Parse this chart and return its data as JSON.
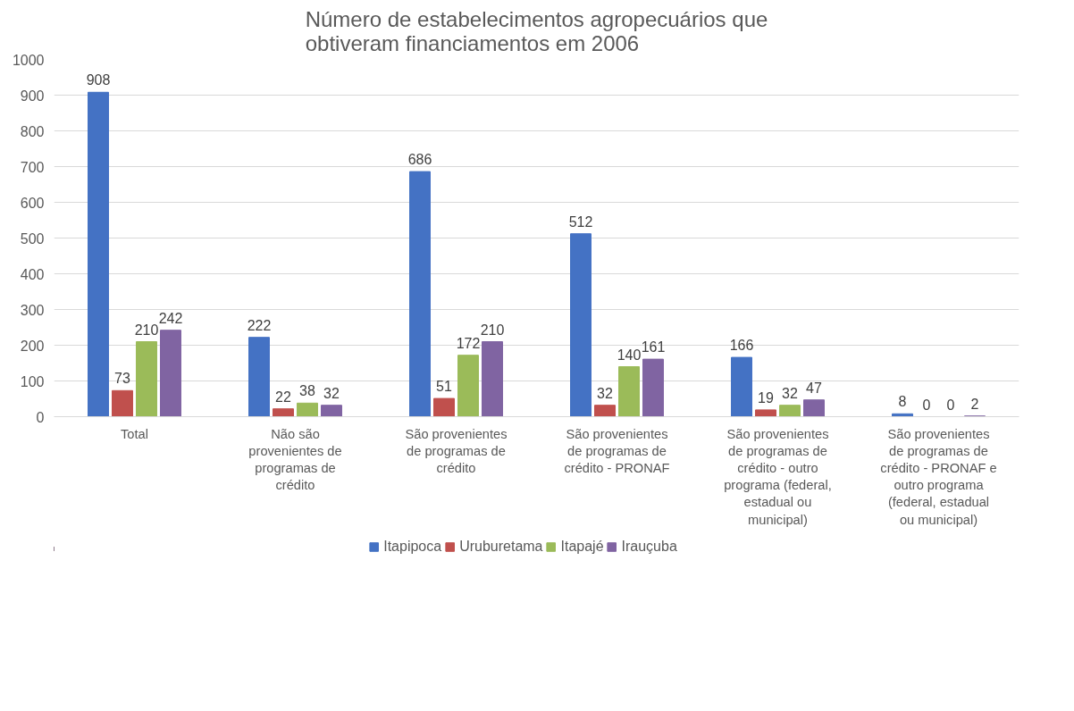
{
  "chart_data": {
    "type": "bar",
    "title": "Número de estabelecimentos agropecuários que obtiveram financiamentos em 2006",
    "categories": [
      "Total",
      "Não são provenientes de programas de crédito",
      "São provenientes de programas de crédito",
      "São provenientes de programas de crédito - PRONAF",
      "São provenientes de programas de crédito - outro programa (federal, estadual ou municipal)",
      "São provenientes de programas de crédito - PRONAF e outro programa (federal, estadual ou municipal)"
    ],
    "series": [
      {
        "name": "Itapipoca",
        "color": "#4472c4",
        "values": [
          908,
          222,
          686,
          512,
          166,
          8
        ]
      },
      {
        "name": "Uruburetama",
        "color": "#c0504d",
        "values": [
          73,
          22,
          51,
          32,
          19,
          0
        ]
      },
      {
        "name": "Itapajé",
        "color": "#9bbb59",
        "values": [
          210,
          38,
          172,
          140,
          32,
          0
        ]
      },
      {
        "name": "Irauçuba",
        "color": "#8064a2",
        "values": [
          242,
          32,
          210,
          161,
          47,
          2
        ]
      }
    ],
    "ylim": [
      0,
      1000
    ],
    "yticks": [
      0,
      100,
      200,
      300,
      400,
      500,
      600,
      700,
      800,
      900,
      1000
    ],
    "grid": "y",
    "legend": "bottom",
    "data_labels": true
  }
}
